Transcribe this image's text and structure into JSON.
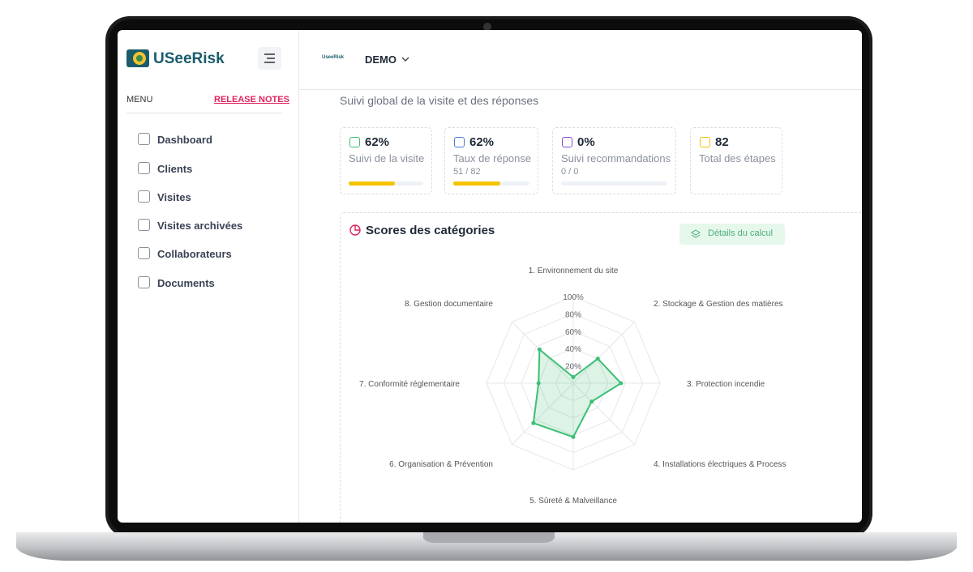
{
  "sidebar": {
    "brand": "USeeRisk",
    "menu_label": "MENU",
    "release_notes": "RELEASE NOTES",
    "items": [
      "Dashboard",
      "Clients",
      "Visites",
      "Visites archivées",
      "Collaborateurs",
      "Documents"
    ]
  },
  "header": {
    "logo_text": "UseeRisk",
    "workspace": "DEMO"
  },
  "section_title": "Suivi global de la visite et des réponses",
  "stats": [
    {
      "value": "62%",
      "label": "Suivi de la visite",
      "progress": 62
    },
    {
      "value": "62%",
      "label": "Taux de réponse",
      "detail": "51 / 82",
      "progress": 62
    },
    {
      "value": "0%",
      "label": "Suivi recommandations",
      "detail": "0 / 0",
      "progress": 0
    },
    {
      "value": "82",
      "label": "Total des étapes"
    }
  ],
  "radar": {
    "title": "Scores des catégories",
    "button": "Détails du calcul",
    "categories": [
      "1. Environnement du site",
      "2. Stockage & Gestion des matières",
      "3. Protection incendie",
      "4. Installations électriques & Process",
      "5. Sûreté & Malveillance",
      "6. Organisation & Prévention",
      "7. Conformité réglementaire",
      "8. Gestion documentaire"
    ],
    "values": [
      7,
      40,
      55,
      30,
      62,
      65,
      40,
      55
    ],
    "rlim": [
      0,
      100
    ],
    "rticks": [
      {
        "value": 20,
        "label": "20%"
      },
      {
        "value": 40,
        "label": "40%"
      },
      {
        "value": 60,
        "label": "60%"
      },
      {
        "value": 80,
        "label": "80%"
      },
      {
        "value": 100,
        "label": "100%"
      }
    ],
    "color": "#3cbf73"
  }
}
